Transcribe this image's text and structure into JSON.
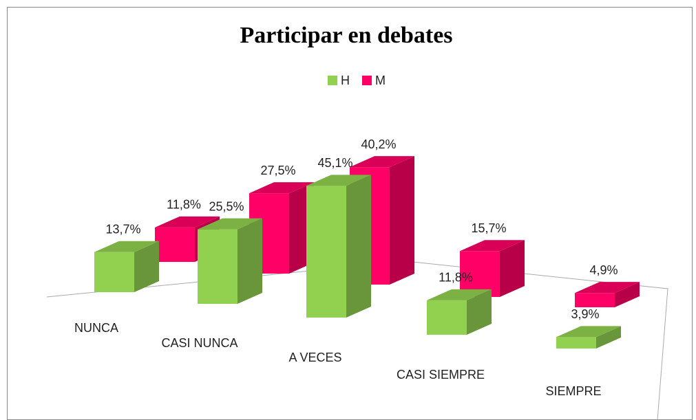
{
  "chart_data": {
    "type": "bar3d",
    "title": "Participar en debates",
    "categories": [
      "NUNCA",
      "CASI NUNCA",
      "A VECES",
      "CASI SIEMPRE",
      "SIEMPRE"
    ],
    "series": [
      {
        "name": "H",
        "color": "#92d050",
        "values": [
          13.7,
          25.5,
          45.1,
          11.8,
          3.9
        ],
        "value_labels": [
          "13,7%",
          "25,5%",
          "45,1%",
          "11,8%",
          "3,9%"
        ]
      },
      {
        "name": "M",
        "color": "#ff0066",
        "values": [
          11.8,
          27.5,
          40.2,
          15.7,
          4.9
        ],
        "value_labels": [
          "11,8%",
          "27,5%",
          "40,2%",
          "15,7%",
          "4,9%"
        ]
      }
    ],
    "legend": "top"
  }
}
